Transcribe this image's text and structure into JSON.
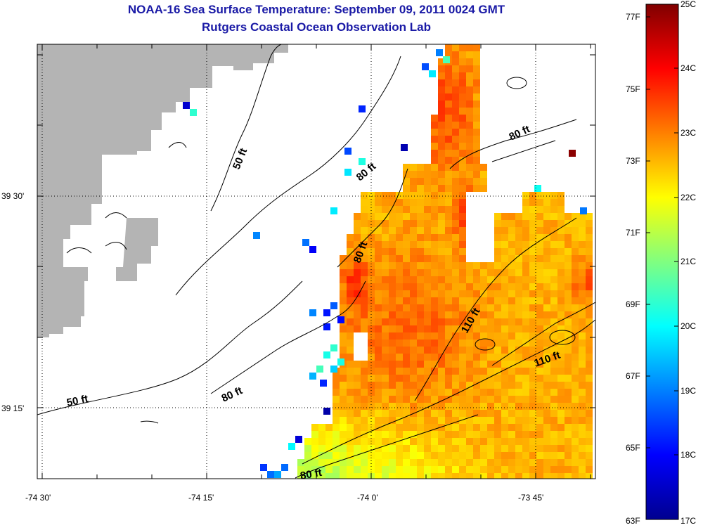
{
  "title": "NOAA-16 Sea Surface Temperature:  September 09, 2011 0024 GMT",
  "subtitle": "Rutgers Coastal Ocean Observation Lab",
  "x_ticks": [
    "-74 30'",
    "-74 15'",
    "-74 0'",
    "-73 45'"
  ],
  "y_ticks": [
    "39 30'",
    "39 15'"
  ],
  "contour_labels": [
    "50 ft",
    "80 ft",
    "80 ft",
    "80 ft",
    "110 ft",
    "110 ft",
    "50 ft",
    "80 ft",
    "80 ft"
  ],
  "colorbar": {
    "fahrenheit_labels": [
      "77F",
      "75F",
      "73F",
      "71F",
      "69F",
      "67F",
      "65F",
      "63F"
    ],
    "celsius_labels": [
      "25C",
      "24C",
      "23C",
      "22C",
      "21C",
      "20C",
      "19C",
      "18C",
      "17C"
    ],
    "range_c": [
      17,
      25
    ]
  },
  "colors": {
    "title": "#1a1aa6",
    "land": "#b4b4b4",
    "water_nodata": "#ffffff"
  }
}
